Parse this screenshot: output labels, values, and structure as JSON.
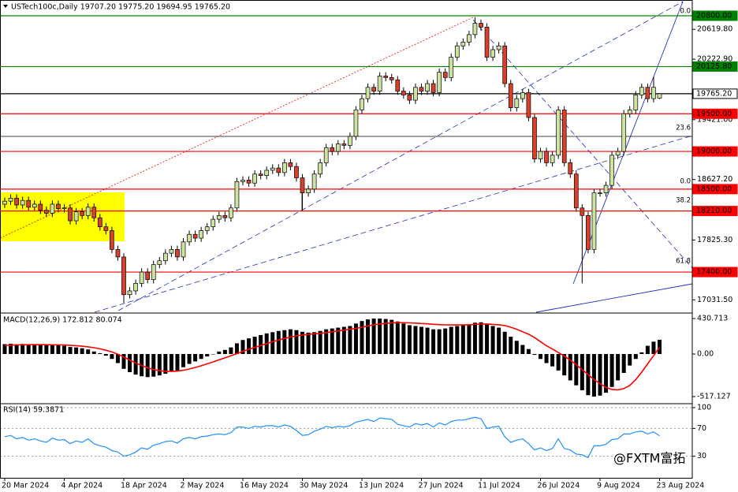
{
  "chart_data": [
    {
      "type": "candlestick",
      "title": "USTech100c,Daily  19707.20 19775.20 19694.95 19765.20",
      "categories": [
        "20 Mar 2024",
        null,
        null,
        null,
        null,
        null,
        null,
        null,
        null,
        null,
        "4 Apr 2024",
        null,
        null,
        null,
        null,
        null,
        null,
        null,
        null,
        null,
        "18 Apr 2024",
        null,
        null,
        null,
        null,
        null,
        null,
        null,
        null,
        null,
        "2 May 2024",
        null,
        null,
        null,
        null,
        null,
        null,
        null,
        null,
        null,
        "16 May 2024",
        null,
        null,
        null,
        null,
        null,
        null,
        null,
        null,
        null,
        "30 May 2024",
        null,
        null,
        null,
        null,
        null,
        null,
        null,
        null,
        null,
        "13 Jun 2024",
        null,
        null,
        null,
        null,
        null,
        null,
        null,
        null,
        null,
        "27 Jun 2024",
        null,
        null,
        null,
        null,
        null,
        null,
        null,
        null,
        null,
        "11 Jul 2024",
        null,
        null,
        null,
        null,
        null,
        null,
        null,
        null,
        null,
        "26 Jul 2024",
        null,
        null,
        null,
        null,
        null,
        null,
        null,
        null,
        null,
        "9 Aug 2024",
        null,
        null,
        null,
        null,
        null,
        null,
        null,
        null,
        null,
        "23 Aug 2024"
      ],
      "open": [
        18300,
        18340,
        18380,
        18290,
        18350,
        18260,
        18300,
        18220,
        18180,
        18300,
        18240,
        18250,
        18080,
        18200,
        18150,
        18260,
        18120,
        18000,
        17950,
        17700,
        17600,
        17100,
        17150,
        17250,
        17400,
        17300,
        17500,
        17550,
        17650,
        17700,
        17600,
        17800,
        17900,
        17850,
        17950,
        18000,
        18100,
        18150,
        18120,
        18250,
        18600,
        18620,
        18580,
        18700,
        18680,
        18750,
        18780,
        18720,
        18850,
        18800,
        18650,
        18450,
        18500,
        18700,
        18850,
        19050,
        19000,
        19100,
        19080,
        19200,
        19550,
        19700,
        19850,
        19800,
        20000,
        19980,
        19950,
        19800,
        19750,
        19680,
        19850,
        19800,
        19900,
        19780,
        20050,
        19980,
        20250,
        20400,
        20450,
        20550,
        20700,
        20650,
        20250,
        20350,
        20400,
        19900,
        19580,
        19700,
        19780,
        19450,
        18900,
        19000,
        18850,
        18950,
        19550,
        18850,
        18700,
        18250,
        18150,
        17700,
        18450,
        18450,
        18550,
        18950,
        19000,
        19500,
        19550,
        19750,
        19850,
        19700,
        19707.2
      ],
      "high": [
        18390,
        18430,
        18430,
        18400,
        18400,
        18350,
        18350,
        18270,
        18350,
        18350,
        18300,
        18300,
        18250,
        18250,
        18310,
        18310,
        18170,
        18050,
        18000,
        17750,
        17650,
        17200,
        17300,
        17450,
        17450,
        17550,
        17600,
        17700,
        17750,
        17750,
        17850,
        17950,
        17950,
        18000,
        18050,
        18150,
        18200,
        18200,
        18300,
        18650,
        18670,
        18670,
        18750,
        18750,
        18800,
        18830,
        18830,
        18900,
        18900,
        18850,
        18700,
        18550,
        18750,
        18900,
        19100,
        19100,
        19150,
        19150,
        19250,
        19600,
        19750,
        19900,
        19900,
        20050,
        20050,
        20030,
        20000,
        19850,
        19800,
        19900,
        19900,
        19950,
        19950,
        20100,
        20100,
        20300,
        20450,
        20500,
        20600,
        20780,
        20750,
        20700,
        20400,
        20450,
        20450,
        19950,
        19750,
        19830,
        19830,
        19500,
        19050,
        19050,
        19000,
        19600,
        19600,
        18900,
        18750,
        18300,
        18200,
        18500,
        18500,
        18600,
        19000,
        19050,
        19550,
        19600,
        19800,
        19900,
        19900,
        19990,
        19775.2
      ],
      "low": [
        18250,
        18290,
        18240,
        18240,
        18210,
        18210,
        18170,
        18130,
        18130,
        18190,
        18190,
        18030,
        18030,
        18100,
        18100,
        18070,
        17950,
        17900,
        17650,
        17550,
        16990,
        17050,
        17100,
        17200,
        17250,
        17250,
        17450,
        17500,
        17600,
        17550,
        17550,
        17750,
        17800,
        17800,
        17900,
        17950,
        18050,
        18070,
        18070,
        18200,
        18550,
        18530,
        18530,
        18630,
        18630,
        18700,
        18670,
        18670,
        18750,
        18600,
        18206,
        18400,
        18450,
        18650,
        18800,
        18950,
        18950,
        19030,
        19030,
        19150,
        19500,
        19650,
        19750,
        19750,
        19930,
        19900,
        19750,
        19700,
        19630,
        19630,
        19750,
        19750,
        19730,
        19730,
        19930,
        19930,
        20200,
        20350,
        20400,
        20500,
        20600,
        20200,
        20200,
        20300,
        19850,
        19530,
        19530,
        19650,
        19400,
        18850,
        18850,
        18800,
        18800,
        18900,
        18800,
        18650,
        18200,
        17250,
        17650,
        17650,
        18400,
        18400,
        18500,
        18900,
        18950,
        19450,
        19500,
        19700,
        19650,
        19650,
        19694.95
      ],
      "close": [
        18340,
        18380,
        18290,
        18350,
        18260,
        18300,
        18220,
        18180,
        18300,
        18240,
        18250,
        18080,
        18200,
        18150,
        18260,
        18120,
        18000,
        17950,
        17700,
        17600,
        17100,
        17150,
        17250,
        17400,
        17300,
        17500,
        17550,
        17650,
        17700,
        17600,
        17800,
        17900,
        17850,
        17950,
        18000,
        18100,
        18150,
        18120,
        18250,
        18600,
        18620,
        18580,
        18700,
        18680,
        18750,
        18780,
        18720,
        18850,
        18800,
        18650,
        18450,
        18500,
        18700,
        18850,
        19050,
        19000,
        19100,
        19080,
        19200,
        19550,
        19700,
        19850,
        19800,
        20000,
        19980,
        19950,
        19800,
        19750,
        19680,
        19850,
        19800,
        19900,
        19780,
        20050,
        19980,
        20250,
        20400,
        20450,
        20550,
        20700,
        20650,
        20250,
        20350,
        20400,
        19900,
        19580,
        19700,
        19780,
        19450,
        18900,
        19000,
        18850,
        18950,
        19550,
        18850,
        18700,
        18250,
        18150,
        17700,
        18450,
        18450,
        18550,
        18950,
        19000,
        19500,
        19550,
        19750,
        19850,
        19700,
        19850,
        19765.2
      ],
      "up_color": "#cfe3a1",
      "down_color": "#d9402b",
      "ylim": [
        16867,
        20831
      ],
      "yticks": [
        {
          "value": 20619.8,
          "label": "20619.80"
        },
        {
          "value": 20222.9,
          "label": "20222.90"
        },
        {
          "value": 19421,
          "label": "19421.00"
        },
        {
          "value": 18627.2,
          "label": "18627.20"
        },
        {
          "value": 17825.3,
          "label": "17825.30"
        },
        {
          "value": 17031.5,
          "label": "17031.50"
        }
      ],
      "levels": [
        {
          "value": 20800,
          "label": "20800.00",
          "color": "#008000"
        },
        {
          "value": 20125.8,
          "label": "20125.80",
          "color": "#008000"
        },
        {
          "value": 19765.2,
          "label": "19765.20",
          "color": "#000000"
        },
        {
          "value": 19500,
          "label": "19500.00",
          "color": "#ff0000"
        },
        {
          "value": 19000,
          "label": "19000.00",
          "color": "#ff0000"
        },
        {
          "value": 18500,
          "label": "18500.00",
          "color": "#ff0000"
        },
        {
          "value": 18210,
          "label": "18210.00",
          "color": "#ff0000"
        },
        {
          "value": 17400,
          "label": "17400.00",
          "color": "#ff0000"
        }
      ],
      "fib_labels": [
        {
          "value": 20800,
          "label": "0.0"
        },
        {
          "value": 19252,
          "label": "23.6"
        },
        {
          "value": 18541,
          "label": "0.0"
        },
        {
          "value": 18290,
          "label": "38.2"
        },
        {
          "value": 17484,
          "label": "61.8"
        }
      ],
      "watermark": "@FXTM富拓"
    },
    {
      "type": "macd",
      "title": "MACD(12,26,9) 172.812 80.074",
      "values": [
        120,
        125,
        118,
        122,
        115,
        118,
        112,
        108,
        112,
        105,
        100,
        85,
        80,
        70,
        55,
        30,
        10,
        -20,
        -60,
        -110,
        -180,
        -220,
        -250,
        -270,
        -280,
        -275,
        -260,
        -240,
        -210,
        -200,
        -160,
        -120,
        -90,
        -60,
        -30,
        0,
        30,
        50,
        80,
        130,
        170,
        190,
        210,
        230,
        250,
        265,
        280,
        290,
        300,
        290,
        270,
        260,
        265,
        280,
        300,
        310,
        320,
        330,
        340,
        370,
        400,
        420,
        430,
        430,
        425,
        415,
        395,
        370,
        350,
        340,
        330,
        320,
        300,
        300,
        310,
        330,
        340,
        350,
        360,
        380,
        385,
        360,
        340,
        320,
        270,
        210,
        160,
        110,
        60,
        -10,
        -60,
        -110,
        -150,
        -200,
        -260,
        -320,
        -380,
        -440,
        -500,
        -517,
        -505,
        -470,
        -400,
        -320,
        -230,
        -140,
        -60,
        20,
        100,
        150,
        172.812
      ],
      "signal": [
        105,
        108,
        110,
        112,
        113,
        114,
        114,
        113,
        112,
        111,
        110,
        106,
        101,
        95,
        87,
        76,
        63,
        46,
        25,
        -2,
        -36,
        -73,
        -108,
        -140,
        -168,
        -189,
        -203,
        -210,
        -212,
        -208,
        -197,
        -182,
        -164,
        -143,
        -120,
        -96,
        -71,
        -47,
        -22,
        4,
        32,
        57,
        80,
        103,
        126,
        149,
        169,
        188,
        206,
        220,
        231,
        238,
        245,
        250,
        260,
        270,
        280,
        290,
        300,
        310,
        325,
        340,
        355,
        365,
        372,
        377,
        380,
        380,
        378,
        375,
        370,
        366,
        361,
        357,
        354,
        353,
        353,
        354,
        355,
        360,
        364,
        365,
        360,
        355,
        345,
        325,
        300,
        270,
        240,
        200,
        150,
        100,
        60,
        18,
        -25,
        -75,
        -130,
        -190,
        -250,
        -310,
        -360,
        -405,
        -430,
        -435,
        -420,
        -380,
        -310,
        -220,
        -120,
        -20,
        80.074
      ],
      "color": "#000000",
      "signal_color": "#ff0000",
      "ylim": [
        -584,
        488
      ],
      "yticks": [
        {
          "value": 430.713,
          "label": "430.713"
        },
        {
          "value": 0,
          "label": "0.00"
        },
        {
          "value": -517.127,
          "label": "-517.127"
        }
      ]
    },
    {
      "type": "line",
      "title": "RSI(14) 59.3871",
      "values": [
        58,
        60,
        55,
        57,
        53,
        55,
        52,
        50,
        56,
        53,
        54,
        48,
        52,
        50,
        55,
        48,
        45,
        43,
        38,
        36,
        30,
        32,
        36,
        42,
        40,
        46,
        48,
        51,
        52,
        49,
        55,
        57,
        55,
        58,
        59,
        61,
        62,
        61,
        64,
        72,
        72,
        70,
        73,
        72,
        74,
        74,
        72,
        75,
        73,
        67,
        60,
        61,
        66,
        69,
        73,
        71,
        73,
        72,
        74,
        79,
        81,
        83,
        80,
        85,
        84,
        83,
        76,
        74,
        72,
        77,
        75,
        77,
        72,
        78,
        75,
        80,
        82,
        82,
        84,
        86,
        84,
        70,
        72,
        73,
        58,
        50,
        53,
        55,
        48,
        39,
        42,
        38,
        41,
        55,
        41,
        39,
        33,
        32,
        28,
        45,
        45,
        47,
        54,
        55,
        62,
        62,
        65,
        66,
        62,
        65,
        59.3871
      ],
      "color": "#1e90ff",
      "ylim": [
        0,
        104.5
      ],
      "yticks": [
        100,
        70,
        30
      ]
    }
  ]
}
